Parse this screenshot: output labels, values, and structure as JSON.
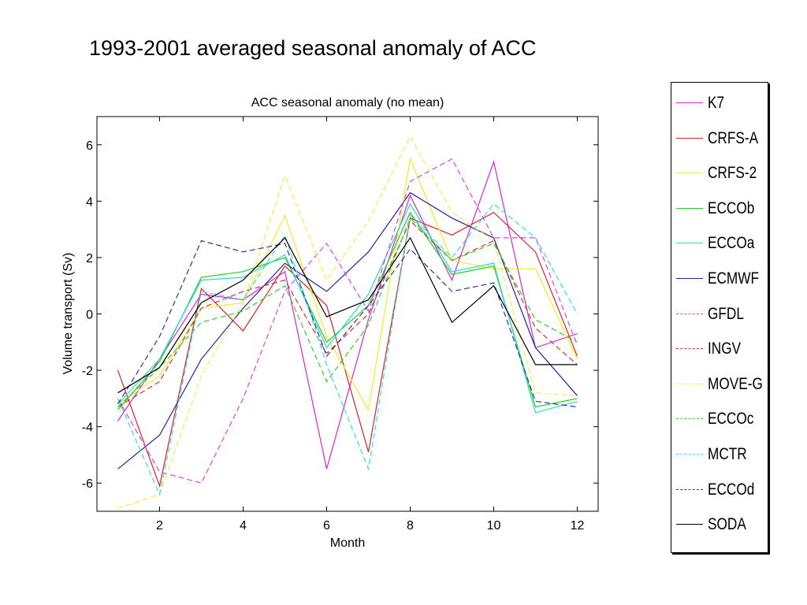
{
  "page_title": "1993-2001 averaged seasonal anomaly of ACC",
  "chart_data": {
    "type": "line",
    "title": "ACC seasonal anomaly (no   mean)",
    "xlabel": "Month",
    "ylabel": "Volume transport (Sv)",
    "xlim": [
      0.5,
      12.5
    ],
    "ylim": [
      -7,
      7
    ],
    "xticks": [
      2,
      4,
      6,
      8,
      10,
      12
    ],
    "yticks": [
      -6,
      -4,
      -2,
      0,
      2,
      4,
      6
    ],
    "grid": false,
    "legend_position": "right-outside",
    "x": [
      1,
      2,
      3,
      4,
      5,
      6,
      7,
      8,
      9,
      10,
      11,
      12
    ],
    "series": [
      {
        "name": "K7",
        "color": "#dd22dd",
        "dash": "solid",
        "values": [
          -3.8,
          -1.6,
          0.7,
          0.5,
          1.5,
          -5.5,
          -0.2,
          4.2,
          1.2,
          5.4,
          -1.2,
          -0.7
        ]
      },
      {
        "name": "CRFS-A",
        "color": "#dd2222",
        "dash": "solid",
        "values": [
          -2.0,
          -6.1,
          0.9,
          -0.6,
          1.7,
          0.3,
          -4.9,
          3.4,
          2.8,
          3.6,
          2.2,
          -1.5
        ]
      },
      {
        "name": "CRFS-2",
        "color": "#eeee22",
        "dash": "solid",
        "values": [
          -3.2,
          -2.2,
          0.2,
          0.4,
          3.5,
          -0.8,
          -3.4,
          5.5,
          1.9,
          1.6,
          1.6,
          -1.6
        ]
      },
      {
        "name": "ECCOb",
        "color": "#22cc22",
        "dash": "solid",
        "values": [
          -3.4,
          -1.7,
          1.3,
          1.5,
          2.0,
          -1.0,
          0.3,
          3.6,
          1.4,
          1.7,
          -3.3,
          -3.0
        ]
      },
      {
        "name": "ECCOa",
        "color": "#22ddcc",
        "dash": "solid",
        "values": [
          -3.2,
          -1.6,
          1.2,
          1.3,
          2.1,
          -1.2,
          0.7,
          3.9,
          1.5,
          1.8,
          -3.5,
          -3.1
        ]
      },
      {
        "name": "ECMWF",
        "color": "#2222aa",
        "dash": "solid",
        "values": [
          -5.5,
          -4.3,
          -1.6,
          0.2,
          1.8,
          0.8,
          2.2,
          4.3,
          3.4,
          2.7,
          -1.2,
          -2.9
        ]
      },
      {
        "name": "GFDL",
        "color": "#dd44dd",
        "dash": "dashed",
        "values": [
          -3.0,
          -5.6,
          -6.0,
          -3.0,
          0.8,
          2.5,
          0.1,
          4.7,
          5.5,
          2.7,
          2.7,
          -1.1
        ]
      },
      {
        "name": "INGV",
        "color": "#cc3333",
        "dash": "dashed",
        "values": [
          -3.3,
          -2.4,
          0.2,
          0.8,
          1.2,
          -1.4,
          0.0,
          3.3,
          1.9,
          2.6,
          -0.5,
          -1.8
        ]
      },
      {
        "name": "MOVE-G",
        "color": "#eeee44",
        "dash": "dashed",
        "values": [
          -6.9,
          -6.4,
          -2.2,
          0.4,
          4.9,
          1.2,
          3.3,
          6.3,
          3.6,
          2.6,
          -2.8,
          -2.9
        ]
      },
      {
        "name": "ECCOc",
        "color": "#33cc33",
        "dash": "dashed",
        "values": [
          -3.3,
          -1.9,
          -0.3,
          0.1,
          1.0,
          -2.4,
          -0.4,
          3.4,
          1.9,
          2.5,
          -0.2,
          -1.0
        ]
      },
      {
        "name": "MCTR",
        "color": "#33dddd",
        "dash": "dashed",
        "values": [
          -3.0,
          -6.4,
          0.8,
          0.5,
          2.8,
          -1.8,
          -5.5,
          3.5,
          2.0,
          3.9,
          2.7,
          0.0
        ]
      },
      {
        "name": "ECCOd",
        "color": "#333399",
        "dash": "dashed",
        "values": [
          -3.2,
          -0.8,
          2.6,
          2.2,
          2.5,
          -1.5,
          0.3,
          2.3,
          0.8,
          1.1,
          -3.1,
          -3.3
        ]
      },
      {
        "name": "SODA",
        "color": "#000000",
        "dash": "solid",
        "values": [
          -2.8,
          -1.9,
          0.4,
          1.2,
          2.7,
          -0.1,
          0.5,
          2.7,
          -0.3,
          1.0,
          -1.8,
          -1.8
        ]
      }
    ]
  }
}
